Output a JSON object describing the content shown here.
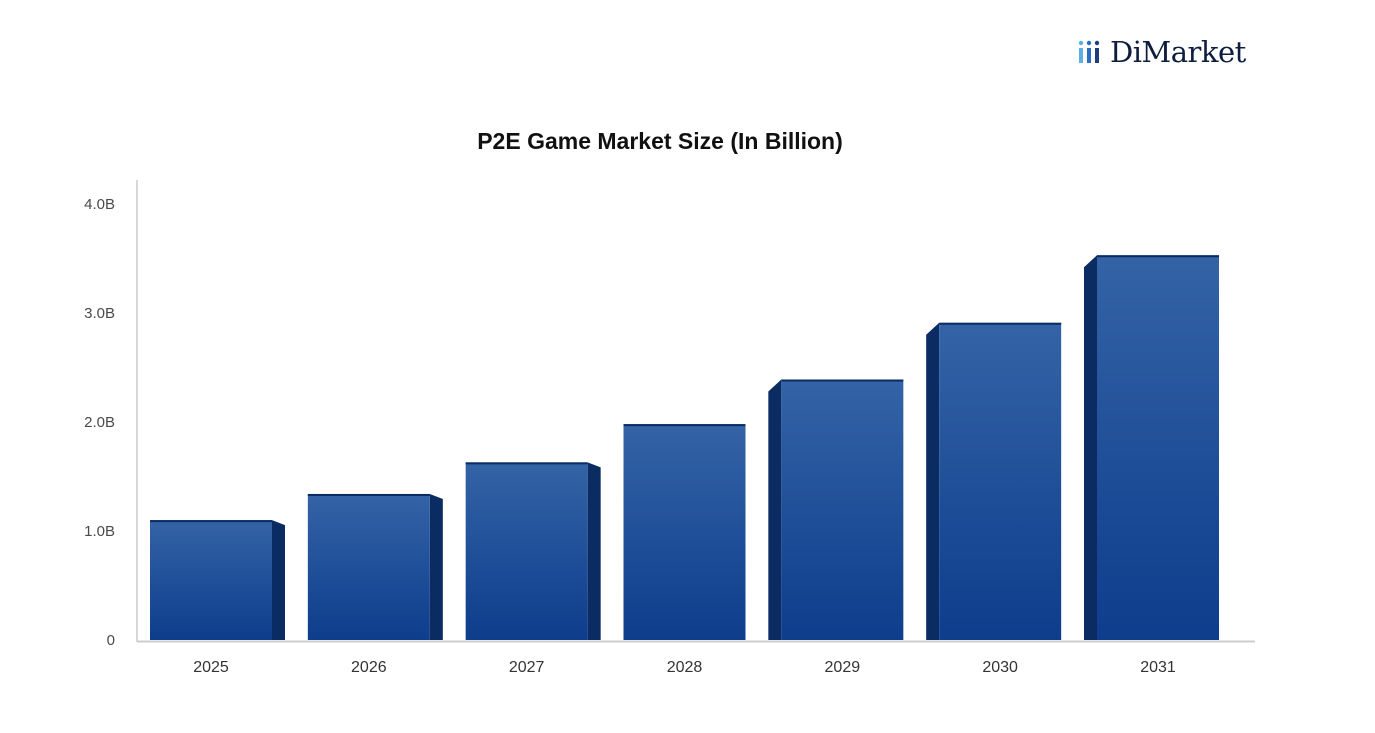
{
  "brand": {
    "name": "DiMarket",
    "icon": "bar-chart-logo-icon",
    "mark_colors": [
      "#5bb0e6",
      "#2b6fc4",
      "#1e3e7a"
    ]
  },
  "colors": {
    "bar_top": "#3463a6",
    "bar_bottom": "#0d3d8c",
    "bar_side": "#0a2c63",
    "axis": "#cccccc"
  },
  "chart_data": {
    "type": "bar",
    "title": "P2E Game Market Size (In Billion)",
    "xlabel": "",
    "ylabel": "",
    "categories": [
      "2025",
      "2026",
      "2027",
      "2028",
      "2029",
      "2030",
      "2031"
    ],
    "values": [
      1.1,
      1.34,
      1.63,
      1.98,
      2.39,
      2.91,
      3.53
    ],
    "ylim": [
      0,
      4.0
    ],
    "yticks": [
      {
        "value": 4.0,
        "label": "4.0B"
      },
      {
        "value": 3.0,
        "label": "3.0B"
      },
      {
        "value": 2.0,
        "label": "2.0B"
      },
      {
        "value": 1.0,
        "label": "1.0B"
      },
      {
        "value": 0,
        "label": "0"
      }
    ],
    "grid": false,
    "legend": "none"
  }
}
